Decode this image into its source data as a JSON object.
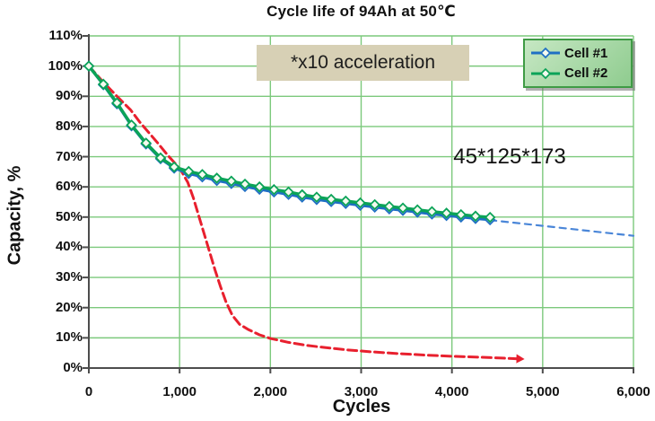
{
  "chart_data": {
    "type": "line",
    "title": "Cycle life of 94Ah at 50℃",
    "xlabel": "Cycles",
    "ylabel": "Capacity, %",
    "xlim": [
      0,
      6000
    ],
    "ylim": [
      0,
      110
    ],
    "grid": true,
    "legend_position": "top-right",
    "x_ticks": [
      {
        "value": 0,
        "label": "0"
      },
      {
        "value": 1000,
        "label": "1,000"
      },
      {
        "value": 2000,
        "label": "2,000"
      },
      {
        "value": 3000,
        "label": "3,000"
      },
      {
        "value": 4000,
        "label": "4,000"
      },
      {
        "value": 5000,
        "label": "5,000"
      },
      {
        "value": 6000,
        "label": "6,000"
      }
    ],
    "y_ticks": [
      {
        "value": 0,
        "label": "0%"
      },
      {
        "value": 10,
        "label": "10%"
      },
      {
        "value": 20,
        "label": "20%"
      },
      {
        "value": 30,
        "label": "30%"
      },
      {
        "value": 40,
        "label": "40%"
      },
      {
        "value": 50,
        "label": "50%"
      },
      {
        "value": 60,
        "label": "60%"
      },
      {
        "value": 70,
        "label": "70%"
      },
      {
        "value": 80,
        "label": "80%"
      },
      {
        "value": 90,
        "label": "90%"
      },
      {
        "value": 100,
        "label": "100%"
      },
      {
        "value": 110,
        "label": "110%"
      }
    ],
    "series": [
      {
        "name": "Cell #1",
        "color": "#1f6fc4",
        "marker": "diamond",
        "marker_fill": "#f4faef",
        "width": 3,
        "x": [
          0,
          160,
          310,
          470,
          630,
          790,
          940,
          1100,
          1250,
          1410,
          1570,
          1720,
          1880,
          2040,
          2200,
          2350,
          2510,
          2670,
          2830,
          2990,
          3150,
          3310,
          3460,
          3620,
          3780,
          3940,
          4100,
          4260,
          4420
        ],
        "values": [
          100,
          93.8,
          87.5,
          80.2,
          74.2,
          69.3,
          66.2,
          64.4,
          63.3,
          62.1,
          61.1,
          60.1,
          59.2,
          58.3,
          57.5,
          56.6,
          55.8,
          55.1,
          54.5,
          53.9,
          53.3,
          52.7,
          52.2,
          51.6,
          51,
          50.5,
          50,
          49.5,
          49.1
        ]
      },
      {
        "name": "Cell #2",
        "color": "#0ba358",
        "marker": "diamond",
        "marker_fill": "#f4faef",
        "width": 3.5,
        "x": [
          0,
          160,
          310,
          470,
          630,
          790,
          940,
          1100,
          1250,
          1410,
          1570,
          1720,
          1880,
          2040,
          2200,
          2350,
          2510,
          2670,
          2830,
          2990,
          3150,
          3310,
          3460,
          3620,
          3780,
          3940,
          4100,
          4260,
          4420
        ],
        "values": [
          100,
          94,
          87.8,
          80.5,
          74.5,
          69.6,
          66.6,
          65.1,
          64.1,
          62.9,
          61.9,
          60.9,
          60,
          59.1,
          58.3,
          57.4,
          56.6,
          55.9,
          55.3,
          54.7,
          54.1,
          53.5,
          53,
          52.4,
          51.8,
          51.3,
          50.8,
          50.3,
          49.9
        ]
      },
      {
        "name": "Cell #1 projection",
        "color": "#4a86d8",
        "width": 2.2,
        "dash": "7 6",
        "x": [
          4420,
          6000
        ],
        "values": [
          49,
          43.8
        ]
      },
      {
        "name": "x10 accelerated fade",
        "color": "#e8202e",
        "width": 3,
        "dash": "10 5",
        "arrow": true,
        "x": [
          0,
          150,
          310,
          460,
          560,
          660,
          760,
          860,
          950,
          1020,
          1090,
          1150,
          1210,
          1270,
          1330,
          1390,
          1450,
          1510,
          1580,
          1660,
          1760,
          1880,
          2000,
          2200,
          2400,
          2600,
          2850,
          3100,
          3400,
          3700,
          4000,
          4300,
          4550,
          4770
        ],
        "values": [
          100,
          95,
          90,
          85.5,
          81.5,
          78,
          74.5,
          70.8,
          67.8,
          65.2,
          61.5,
          56.5,
          50.5,
          44.5,
          38.5,
          32.5,
          27,
          22,
          17.5,
          14.5,
          12.7,
          11,
          9.8,
          8.5,
          7.5,
          6.8,
          6,
          5.4,
          4.8,
          4.3,
          3.9,
          3.6,
          3.3,
          3
        ]
      }
    ],
    "annotations": [
      {
        "id": "acceleration",
        "text": "*x10 acceleration",
        "box_color": "#d7d0b5"
      },
      {
        "id": "dimensions",
        "text": "45*125*173"
      }
    ]
  },
  "legend": {
    "items": [
      {
        "label": "Cell #1",
        "color": "#1f6fc4"
      },
      {
        "label": "Cell #2",
        "color": "#0ba358"
      }
    ]
  },
  "colors": {
    "grid": "#7cc97c",
    "axis": "#4d4d4d",
    "background": "#ffffff"
  }
}
